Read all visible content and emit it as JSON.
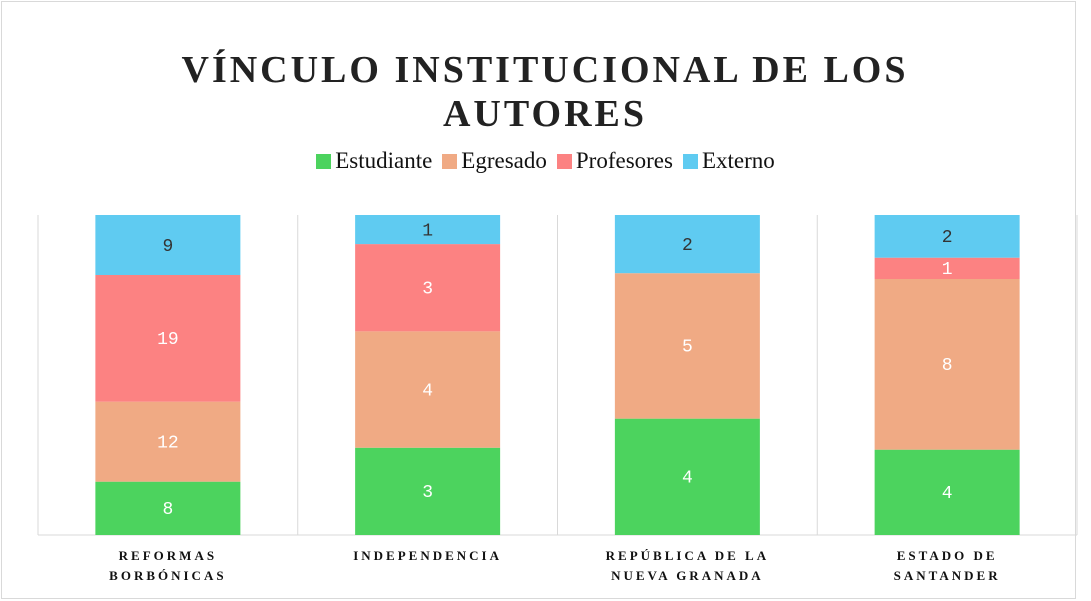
{
  "chart_data": {
    "type": "bar",
    "stacked": "percent",
    "title": "VÍNCULO INSTITUCIONAL DE LOS AUTORES",
    "categories": [
      "REFORMAS BORBÓNICAS",
      "INDEPENDENCIA",
      "REPÚBLICA DE LA NUEVA GRANADA",
      "ESTADO DE SANTANDER"
    ],
    "series": [
      {
        "name": "Estudiante",
        "color": "#4cd35e",
        "values": [
          8,
          3,
          4,
          4
        ]
      },
      {
        "name": "Egresado",
        "color": "#f0aa84",
        "values": [
          12,
          4,
          5,
          8
        ]
      },
      {
        "name": "Profesores",
        "color": "#fc8282",
        "values": [
          19,
          3,
          0,
          1
        ]
      },
      {
        "name": "Externo",
        "color": "#5fcbf1",
        "values": [
          9,
          1,
          2,
          2
        ]
      }
    ],
    "legend": "top"
  }
}
